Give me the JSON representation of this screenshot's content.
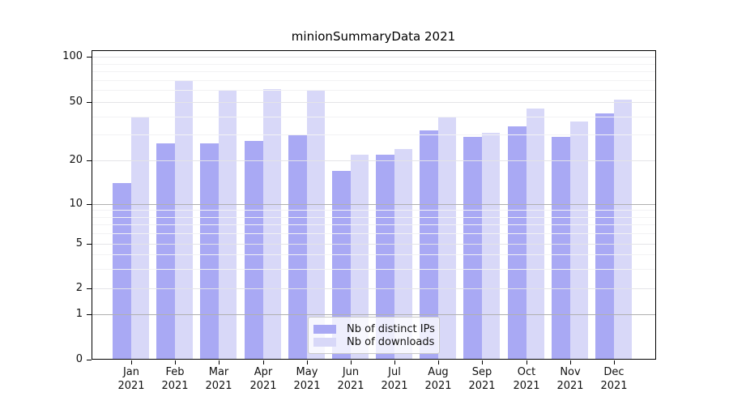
{
  "chart_data": {
    "type": "bar",
    "title": "minionSummaryData 2021",
    "categories": [
      "Jan",
      "Feb",
      "Mar",
      "Apr",
      "May",
      "Jun",
      "Jul",
      "Aug",
      "Sep",
      "Oct",
      "Nov",
      "Dec"
    ],
    "x_tick_line2": "2021",
    "series": [
      {
        "name": "Nb of distinct IPs",
        "color": "#a9a9f4",
        "values": [
          14,
          26,
          26,
          27,
          30,
          17,
          22,
          32,
          29,
          34,
          29,
          42
        ]
      },
      {
        "name": "Nb of downloads",
        "color": "#d8d8f8",
        "values": [
          40,
          70,
          60,
          61,
          60,
          22,
          24,
          40,
          31,
          45,
          37,
          52
        ]
      }
    ],
    "xlabel": "",
    "ylabel": "",
    "y_ticks": [
      100,
      50,
      20,
      10,
      5,
      2,
      1,
      0
    ],
    "y_minor_gridlines": [
      3,
      4,
      6,
      7,
      8,
      9,
      30,
      40,
      60,
      70,
      80,
      90
    ],
    "yscale": "log-like with linear 0-1 baseline",
    "ylim": [
      0,
      115
    ],
    "grid": true,
    "legend_position": "lower center",
    "colors": {
      "background": "#ffffff",
      "axis": "#000000",
      "text": "#111111",
      "grid_decade": "#b0b0b0",
      "grid_major": "#e4e4e8",
      "grid_minor": "#f2f2f4"
    }
  }
}
